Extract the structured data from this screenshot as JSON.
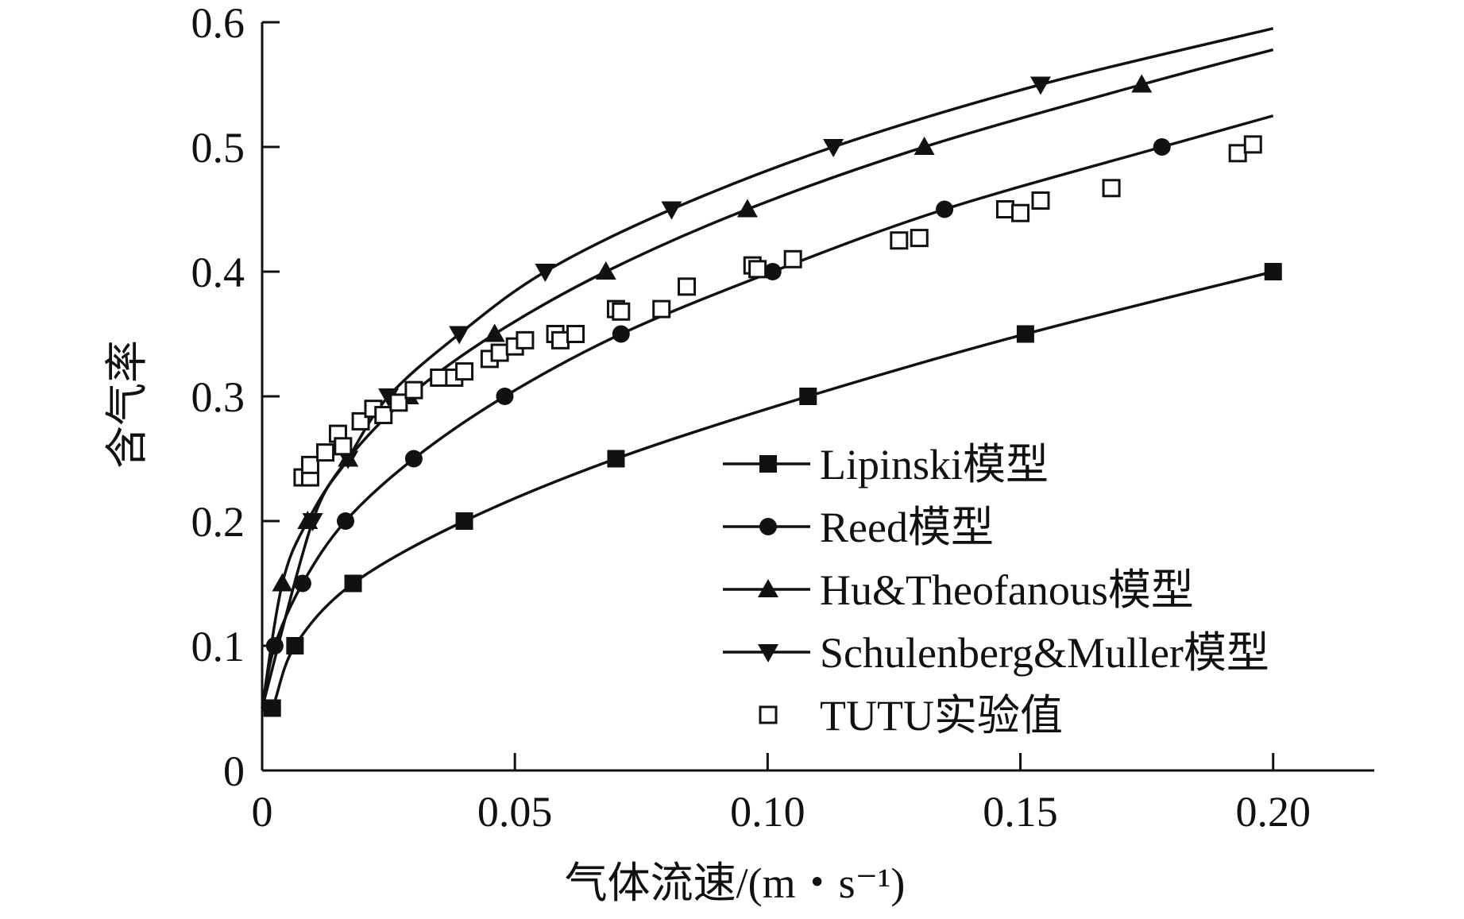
{
  "chart_data": {
    "type": "line",
    "title": "",
    "xlabel": "气体流速/(m・s⁻¹)",
    "ylabel": "含气率",
    "xlim": [
      0,
      0.22
    ],
    "ylim": [
      0,
      0.6
    ],
    "x_ticks": [
      {
        "value": 0,
        "label": "0"
      },
      {
        "value": 0.05,
        "label": "0.05"
      },
      {
        "value": 0.1,
        "label": "0.10"
      },
      {
        "value": 0.15,
        "label": "0.15"
      },
      {
        "value": 0.2,
        "label": "0.20"
      }
    ],
    "y_ticks": [
      {
        "value": 0,
        "label": "0"
      },
      {
        "value": 0.1,
        "label": "0.1"
      },
      {
        "value": 0.2,
        "label": "0.2"
      },
      {
        "value": 0.3,
        "label": "0.3"
      },
      {
        "value": 0.4,
        "label": "0.4"
      },
      {
        "value": 0.5,
        "label": "0.5"
      },
      {
        "value": 0.6,
        "label": "0.6"
      }
    ],
    "grid": false,
    "legend_position": "lower-right",
    "series": [
      {
        "name": "Lipinski模型",
        "marker": "square-filled",
        "line": true,
        "points": [
          [
            0.002,
            0.05
          ],
          [
            0.0065,
            0.1
          ],
          [
            0.018,
            0.15
          ],
          [
            0.04,
            0.2
          ],
          [
            0.07,
            0.25
          ],
          [
            0.108,
            0.3
          ],
          [
            0.151,
            0.35
          ],
          [
            0.2,
            0.4
          ]
        ]
      },
      {
        "name": "Reed模型",
        "marker": "circle-filled",
        "line": true,
        "points": [
          [
            0.0025,
            0.1
          ],
          [
            0.008,
            0.15
          ],
          [
            0.0165,
            0.2
          ],
          [
            0.03,
            0.25
          ],
          [
            0.048,
            0.3
          ],
          [
            0.071,
            0.35
          ],
          [
            0.101,
            0.4
          ],
          [
            0.135,
            0.45
          ],
          [
            0.178,
            0.5
          ]
        ]
      },
      {
        "name": "Hu&Theofanous模型",
        "marker": "triangle-up-filled",
        "line": true,
        "points": [
          [
            0.004,
            0.15
          ],
          [
            0.009,
            0.2
          ],
          [
            0.017,
            0.25
          ],
          [
            0.029,
            0.3
          ],
          [
            0.046,
            0.35
          ],
          [
            0.068,
            0.4
          ],
          [
            0.096,
            0.45
          ],
          [
            0.131,
            0.5
          ],
          [
            0.174,
            0.55
          ]
        ]
      },
      {
        "name": "Schulenberg&Muller模型",
        "marker": "triangle-down-filled",
        "line": true,
        "points": [
          [
            0.01,
            0.2
          ],
          [
            0.017,
            0.25
          ],
          [
            0.025,
            0.3
          ],
          [
            0.039,
            0.35
          ],
          [
            0.056,
            0.4
          ],
          [
            0.081,
            0.45
          ],
          [
            0.113,
            0.5
          ],
          [
            0.154,
            0.55
          ]
        ]
      },
      {
        "name": "TUTU实验值",
        "marker": "square-open",
        "line": false,
        "points": [
          [
            0.008,
            0.235
          ],
          [
            0.0095,
            0.235
          ],
          [
            0.0095,
            0.245
          ],
          [
            0.0125,
            0.255
          ],
          [
            0.015,
            0.27
          ],
          [
            0.016,
            0.26
          ],
          [
            0.0195,
            0.28
          ],
          [
            0.022,
            0.29
          ],
          [
            0.024,
            0.285
          ],
          [
            0.027,
            0.295
          ],
          [
            0.03,
            0.305
          ],
          [
            0.035,
            0.315
          ],
          [
            0.038,
            0.315
          ],
          [
            0.04,
            0.32
          ],
          [
            0.045,
            0.33
          ],
          [
            0.047,
            0.335
          ],
          [
            0.05,
            0.34
          ],
          [
            0.052,
            0.345
          ],
          [
            0.058,
            0.35
          ],
          [
            0.059,
            0.345
          ],
          [
            0.062,
            0.35
          ],
          [
            0.07,
            0.37
          ],
          [
            0.071,
            0.368
          ],
          [
            0.079,
            0.37
          ],
          [
            0.084,
            0.388
          ],
          [
            0.097,
            0.405
          ],
          [
            0.098,
            0.402
          ],
          [
            0.105,
            0.41
          ],
          [
            0.126,
            0.425
          ],
          [
            0.13,
            0.427
          ],
          [
            0.147,
            0.45
          ],
          [
            0.15,
            0.447
          ],
          [
            0.154,
            0.457
          ],
          [
            0.168,
            0.467
          ],
          [
            0.193,
            0.495
          ],
          [
            0.196,
            0.502
          ]
        ]
      }
    ]
  }
}
